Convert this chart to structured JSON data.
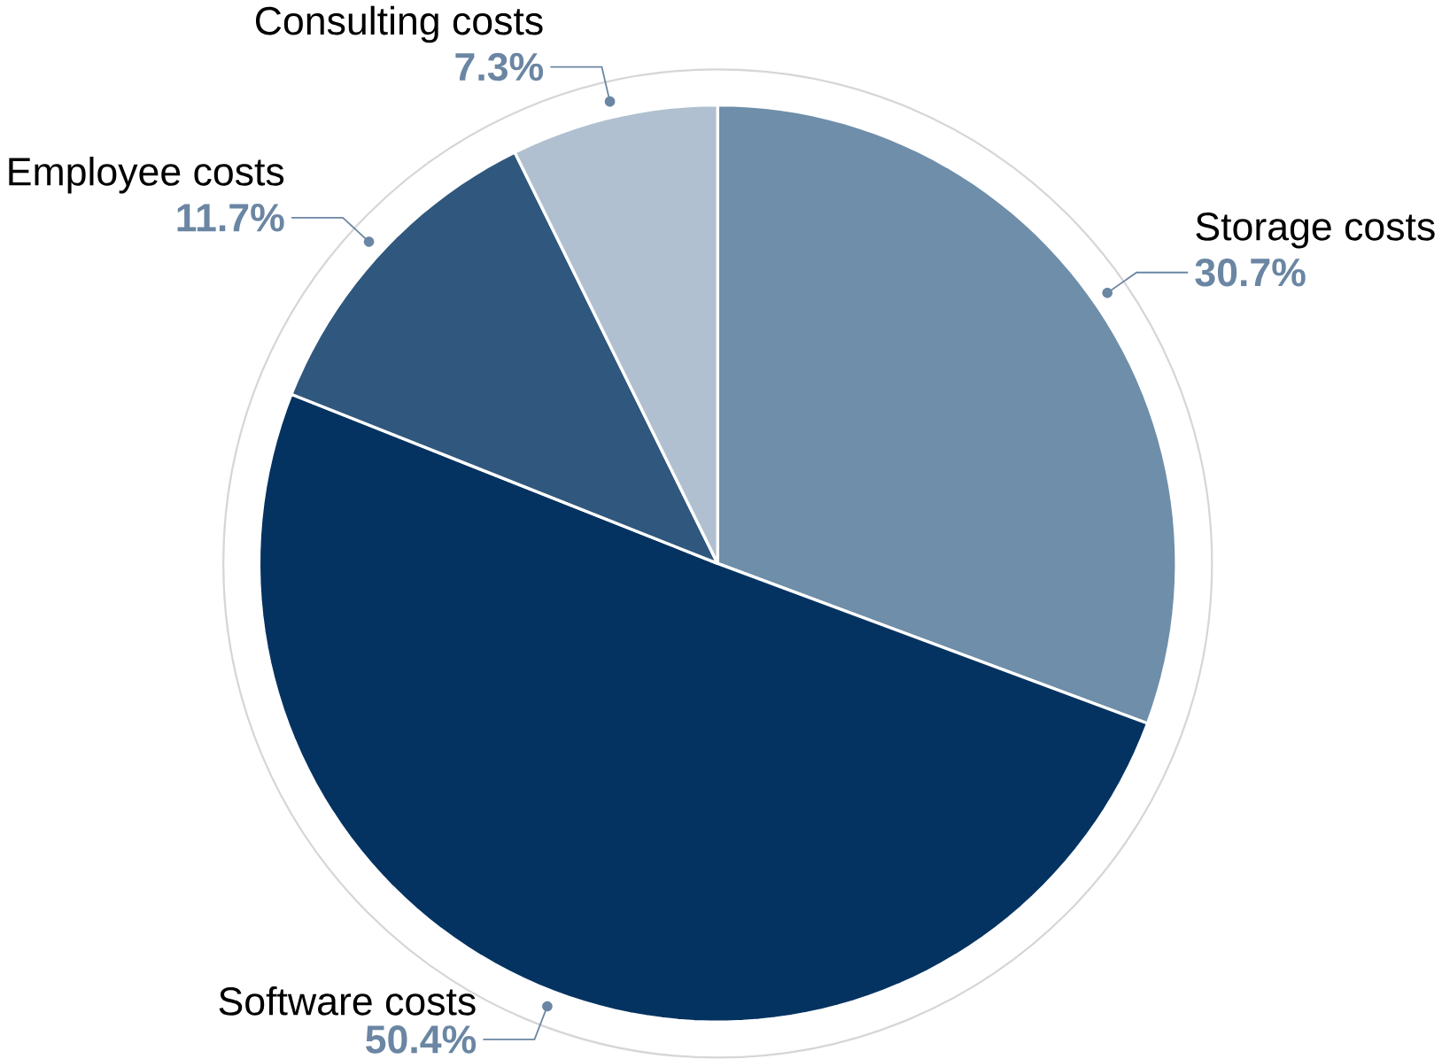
{
  "chart_data": {
    "type": "pie",
    "categories": [
      "Storage costs",
      "Software costs",
      "Employee costs",
      "Consulting costs"
    ],
    "values": [
      30.7,
      50.4,
      11.7,
      7.3
    ],
    "value_labels": [
      "30.7%",
      "50.4%",
      "11.7%",
      "7.3%"
    ],
    "colors": [
      "#6e8ea9",
      "#053361",
      "#30577d",
      "#b0c0d0"
    ]
  }
}
